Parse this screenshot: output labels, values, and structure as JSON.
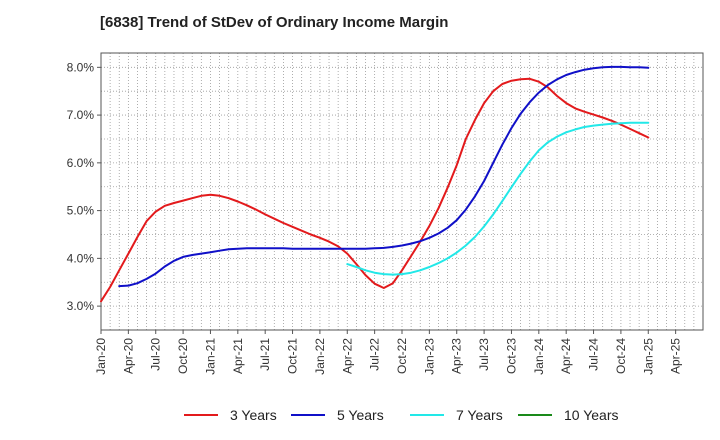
{
  "title": "[6838]  Trend of StDev of Ordinary Income Margin",
  "chart_data": {
    "type": "line",
    "title": "[6838]  Trend of StDev of Ordinary Income Margin",
    "xlabel": "",
    "ylabel": "",
    "x_ticks": [
      "Jan-20",
      "Apr-20",
      "Jul-20",
      "Oct-20",
      "Jan-21",
      "Apr-21",
      "Jul-21",
      "Oct-21",
      "Jan-22",
      "Apr-22",
      "Jul-22",
      "Oct-22",
      "Jan-23",
      "Apr-23",
      "Jul-23",
      "Oct-23",
      "Jan-24",
      "Apr-24",
      "Jul-24",
      "Oct-24",
      "Jan-25",
      "Apr-25"
    ],
    "y_ticks": [
      "3.0%",
      "4.0%",
      "5.0%",
      "6.0%",
      "7.0%",
      "8.0%"
    ],
    "ylim": [
      2.5,
      8.3
    ],
    "grid": true,
    "legend_position": "bottom",
    "series": [
      {
        "name": "3 Years",
        "color": "#e31a1c",
        "x": [
          "2020-01",
          "2020-02",
          "2020-03",
          "2020-04",
          "2020-05",
          "2020-06",
          "2020-07",
          "2020-08",
          "2020-09",
          "2020-10",
          "2020-11",
          "2020-12",
          "2021-01",
          "2021-02",
          "2021-03",
          "2021-04",
          "2021-05",
          "2021-06",
          "2021-07",
          "2021-08",
          "2021-09",
          "2021-10",
          "2021-11",
          "2021-12",
          "2022-01",
          "2022-02",
          "2022-03",
          "2022-04",
          "2022-05",
          "2022-06",
          "2022-07",
          "2022-08",
          "2022-09",
          "2022-10",
          "2022-11",
          "2022-12",
          "2023-01",
          "2023-02",
          "2023-03",
          "2023-04",
          "2023-05",
          "2023-06",
          "2023-07",
          "2023-08",
          "2023-09",
          "2023-10",
          "2023-11",
          "2023-12",
          "2024-01",
          "2024-02",
          "2024-03",
          "2024-04",
          "2024-05",
          "2024-06",
          "2024-07",
          "2024-08",
          "2024-09",
          "2024-10",
          "2024-11",
          "2024-12",
          "2025-01"
        ],
        "values": [
          3.1,
          3.4,
          3.75,
          4.1,
          4.45,
          4.78,
          4.98,
          5.1,
          5.16,
          5.21,
          5.26,
          5.31,
          5.33,
          5.31,
          5.26,
          5.19,
          5.11,
          5.02,
          4.92,
          4.83,
          4.74,
          4.66,
          4.58,
          4.5,
          4.43,
          4.35,
          4.25,
          4.1,
          3.88,
          3.65,
          3.47,
          3.38,
          3.48,
          3.75,
          4.05,
          4.35,
          4.68,
          5.05,
          5.48,
          5.95,
          6.5,
          6.9,
          7.25,
          7.5,
          7.65,
          7.72,
          7.75,
          7.76,
          7.7,
          7.58,
          7.4,
          7.25,
          7.14,
          7.07,
          7.01,
          6.95,
          6.88,
          6.8,
          6.71,
          6.62,
          6.53
        ]
      },
      {
        "name": "5 Years",
        "color": "#1010c8",
        "x": [
          "2020-01",
          "2020-02",
          "2020-03",
          "2020-04",
          "2020-05",
          "2020-06",
          "2020-07",
          "2020-08",
          "2020-09",
          "2020-10",
          "2020-11",
          "2020-12",
          "2021-01",
          "2021-02",
          "2021-03",
          "2021-04",
          "2021-05",
          "2021-06",
          "2021-07",
          "2021-08",
          "2021-09",
          "2021-10",
          "2021-11",
          "2021-12",
          "2022-01",
          "2022-02",
          "2022-03",
          "2022-04",
          "2022-05",
          "2022-06",
          "2022-07",
          "2022-08",
          "2022-09",
          "2022-10",
          "2022-11",
          "2022-12",
          "2023-01",
          "2023-02",
          "2023-03",
          "2023-04",
          "2023-05",
          "2023-06",
          "2023-07",
          "2023-08",
          "2023-09",
          "2023-10",
          "2023-11",
          "2023-12",
          "2024-01",
          "2024-02",
          "2024-03",
          "2024-04",
          "2024-05",
          "2024-06",
          "2024-07",
          "2024-08",
          "2024-09",
          "2024-10",
          "2024-11",
          "2024-12",
          "2025-01"
        ],
        "values": [
          null,
          null,
          3.42,
          3.43,
          3.48,
          3.57,
          3.68,
          3.83,
          3.95,
          4.03,
          4.07,
          4.1,
          4.13,
          4.16,
          4.19,
          4.2,
          4.21,
          4.21,
          4.21,
          4.21,
          4.21,
          4.2,
          4.2,
          4.2,
          4.2,
          4.2,
          4.2,
          4.2,
          4.2,
          4.2,
          4.21,
          4.22,
          4.24,
          4.27,
          4.31,
          4.36,
          4.43,
          4.52,
          4.64,
          4.8,
          5.02,
          5.3,
          5.62,
          6.0,
          6.38,
          6.73,
          7.03,
          7.27,
          7.47,
          7.63,
          7.75,
          7.84,
          7.9,
          7.95,
          7.98,
          8.0,
          8.01,
          8.01,
          8.0,
          8.0,
          7.99
        ]
      },
      {
        "name": "7 Years",
        "color": "#22e8e8",
        "x": [
          "2022-04",
          "2022-05",
          "2022-06",
          "2022-07",
          "2022-08",
          "2022-09",
          "2022-10",
          "2022-11",
          "2022-12",
          "2023-01",
          "2023-02",
          "2023-03",
          "2023-04",
          "2023-05",
          "2023-06",
          "2023-07",
          "2023-08",
          "2023-09",
          "2023-10",
          "2023-11",
          "2023-12",
          "2024-01",
          "2024-02",
          "2024-03",
          "2024-04",
          "2024-05",
          "2024-06",
          "2024-07",
          "2024-08",
          "2024-09",
          "2024-10",
          "2024-11",
          "2024-12",
          "2025-01"
        ],
        "values": [
          3.88,
          3.82,
          3.75,
          3.7,
          3.67,
          3.66,
          3.67,
          3.7,
          3.75,
          3.82,
          3.9,
          4.0,
          4.12,
          4.27,
          4.45,
          4.67,
          4.92,
          5.2,
          5.49,
          5.77,
          6.03,
          6.26,
          6.43,
          6.55,
          6.64,
          6.7,
          6.75,
          6.78,
          6.8,
          6.82,
          6.83,
          6.84,
          6.84,
          6.84
        ]
      },
      {
        "name": "10 Years",
        "color": "#1a8a1a",
        "x": [],
        "values": []
      }
    ]
  }
}
